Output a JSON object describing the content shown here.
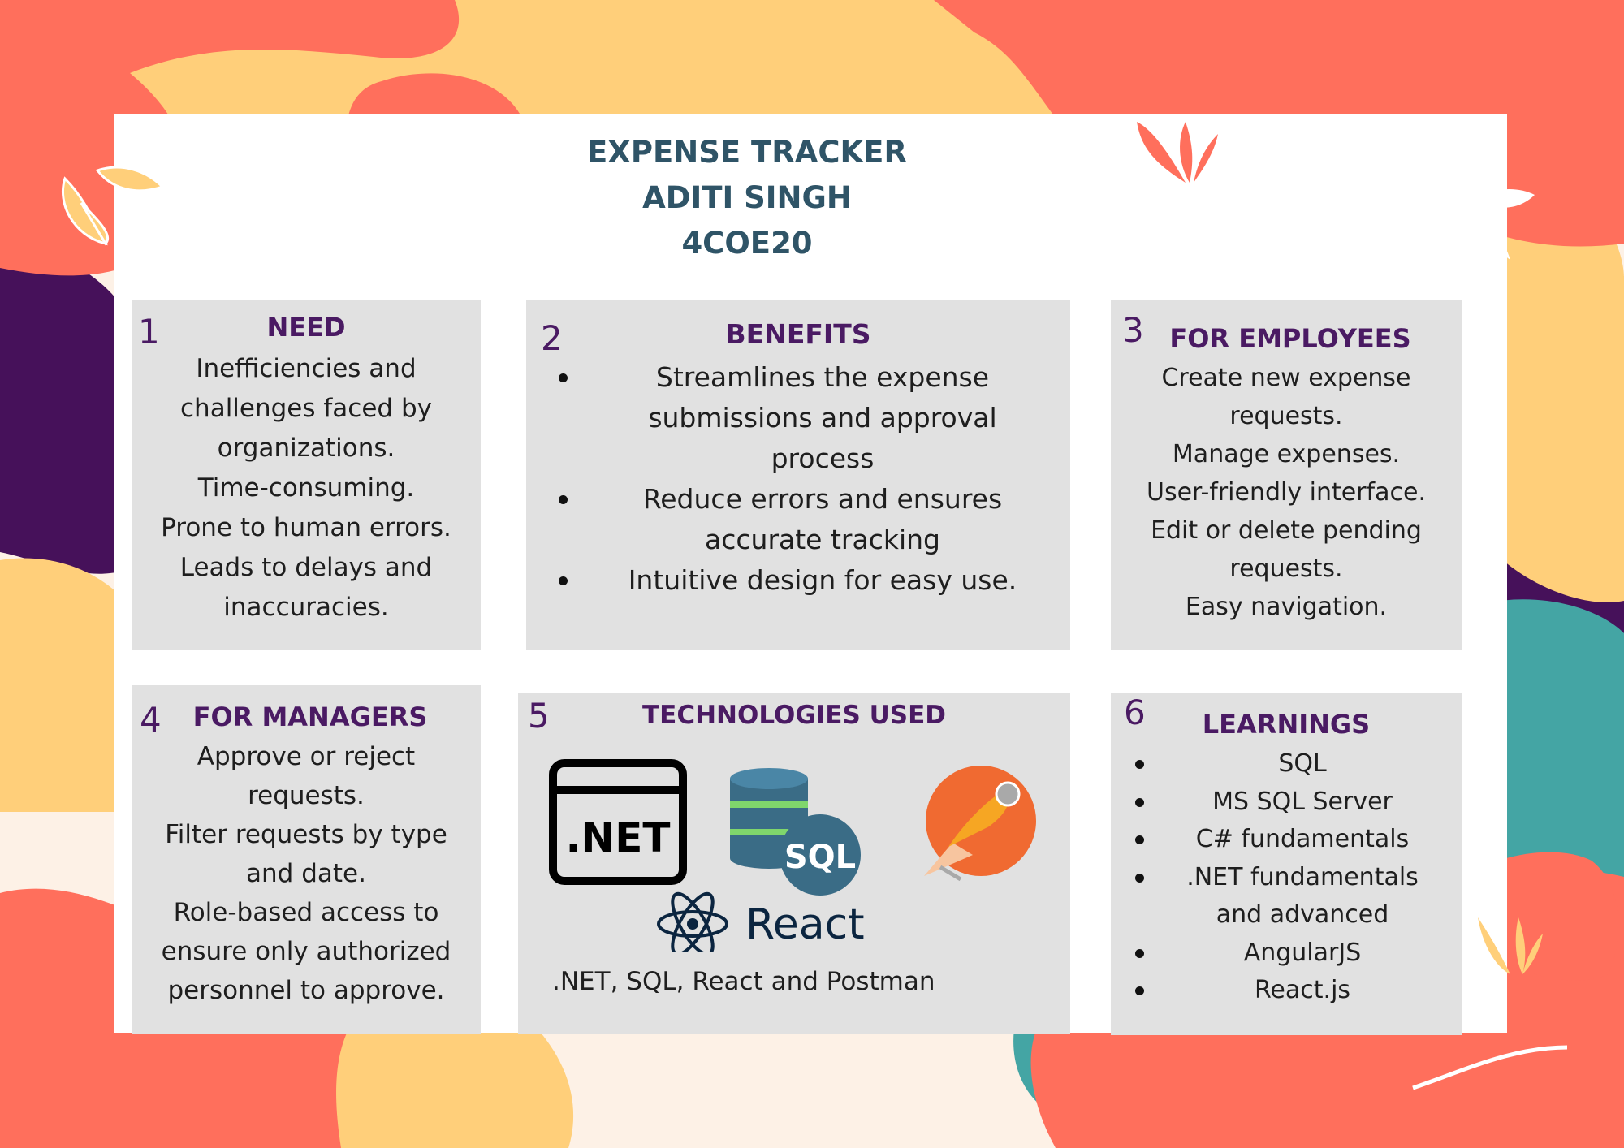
{
  "header": {
    "title": "EXPENSE TRACKER",
    "name": "ADITI SINGH",
    "code": "4COE20"
  },
  "colors": {
    "coral": "#ff6f5c",
    "yellow": "#ffcf7a",
    "teal": "#44a5a4",
    "purple": "#46115a",
    "cream": "#fdf1e6",
    "panel": "#e1e1e1",
    "heading": "#4a1a63",
    "header_text": "#2f5467"
  },
  "panels": {
    "need": {
      "number": "1",
      "title": "NEED",
      "lines": [
        "Inefficiencies and",
        "challenges faced by",
        "organizations.",
        "Time-consuming.",
        "Prone to human errors.",
        "Leads to delays and",
        "inaccuracies."
      ]
    },
    "benefits": {
      "number": "2",
      "title": "BENEFITS",
      "items": [
        {
          "lines": [
            "Streamlines the expense",
            "submissions and approval",
            "process"
          ]
        },
        {
          "lines": [
            "Reduce errors and ensures",
            "accurate tracking"
          ]
        },
        {
          "lines": [
            "Intuitive design for easy use."
          ]
        }
      ]
    },
    "employees": {
      "number": "3",
      "title": "FOR EMPLOYEES",
      "lines": [
        "Create new expense",
        "requests.",
        "Manage expenses.",
        "User-friendly interface.",
        "Edit or delete pending",
        "requests.",
        "Easy navigation."
      ]
    },
    "managers": {
      "number": "4",
      "title": "FOR MANAGERS",
      "lines": [
        "Approve or reject",
        "requests.",
        "Filter requests by type",
        "and date.",
        "Role-based access to",
        "ensure only authorized",
        "personnel to approve."
      ]
    },
    "technologies": {
      "number": "5",
      "title": "TECHNOLOGIES USED",
      "caption": ".NET, SQL, React and Postman",
      "logos": {
        "net_label": ".NET",
        "sql_label": "SQL",
        "react_label": "React"
      }
    },
    "learnings": {
      "number": "6",
      "title": "LEARNINGS",
      "items": [
        {
          "lines": [
            "SQL"
          ]
        },
        {
          "lines": [
            "MS SQL Server"
          ]
        },
        {
          "lines": [
            "C# fundamentals"
          ]
        },
        {
          "lines": [
            ".NET fundamentals",
            "and advanced"
          ]
        },
        {
          "lines": [
            "AngularJS"
          ]
        },
        {
          "lines": [
            "React.js"
          ]
        }
      ]
    }
  }
}
